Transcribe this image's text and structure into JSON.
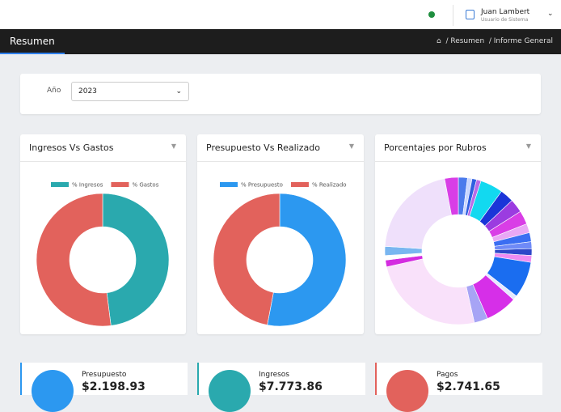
{
  "header": {
    "user_name": "Juan Lambert",
    "user_role": "Usuario de Sistema"
  },
  "nav": {
    "title": "Resumen",
    "breadcrumb": [
      "Resumen",
      "Informe General"
    ]
  },
  "filter": {
    "label": "Año",
    "value": "2023"
  },
  "panels": [
    {
      "title": "Ingresos Vs Gastos"
    },
    {
      "title": "Presupuesto Vs Realizado"
    },
    {
      "title": "Porcentajes por Rubros"
    }
  ],
  "chart_data": [
    {
      "type": "pie",
      "categories": [
        "% Ingresos",
        "% Gastos"
      ],
      "values": [
        48,
        52
      ],
      "colors": [
        "#2aa9ae",
        "#e2625c"
      ]
    },
    {
      "type": "pie",
      "categories": [
        "% Presupuesto",
        "% Realizado"
      ],
      "values": [
        53,
        47
      ],
      "colors": [
        "#2c98f0",
        "#e2625c"
      ]
    },
    {
      "type": "pie",
      "values": [
        2,
        1,
        1,
        1,
        5,
        3,
        3,
        3,
        2,
        2,
        1.5,
        1.5,
        1.5,
        8,
        1,
        7,
        3,
        25,
        1.5,
        1,
        2,
        21,
        3
      ],
      "colors": [
        "#4b7bec",
        "#c9d6ff",
        "#2f5fe0",
        "#b96be8",
        "#12d9f0",
        "#1a35d8",
        "#9b3ce0",
        "#d93ee6",
        "#e9a8f5",
        "#3b6ef2",
        "#6f8af7",
        "#2e47c9",
        "#ef8cf2",
        "#1a6df0",
        "#e3e8ff",
        "#d62fe8",
        "#a7a4f5",
        "#f9e1fa",
        "#d42ce0",
        "#ffffff",
        "#79b6f0",
        "#efe0fb",
        "#d83ee6"
      ]
    }
  ],
  "stats": [
    {
      "label": "Presupuesto",
      "value": "$2.198.93"
    },
    {
      "label": "Ingresos",
      "value": "$7.773.86"
    },
    {
      "label": "Pagos",
      "value": "$2.741.65"
    }
  ]
}
